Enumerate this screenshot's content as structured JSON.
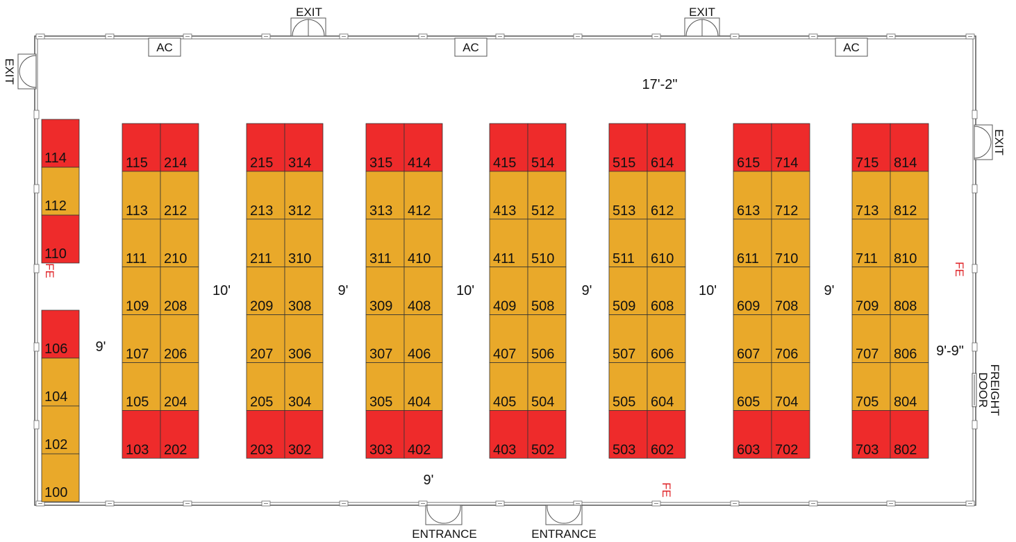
{
  "colors": {
    "premium": "#ee2b2b",
    "standard": "#e9a92a",
    "booth_border": "#333333",
    "wall": "#555555",
    "fire_extinguisher": "#e0282c"
  },
  "icons": [
    "column-icon",
    "door-icon",
    "fire-extinguisher-label"
  ],
  "signs": {
    "exit_top_1": "EXIT",
    "exit_top_2": "EXIT",
    "exit_left": "EXIT",
    "exit_right": "EXIT",
    "ac_1": "AC",
    "ac_2": "AC",
    "ac_3": "AC",
    "entrance_1": "ENTRANCE",
    "entrance_2": "ENTRANCE",
    "freight_line1": "FREIGHT",
    "freight_line2": "DOOR",
    "fe": "FE"
  },
  "dimensions": {
    "top": "17'-2\"",
    "bottom": "9'",
    "left": "9'",
    "right": "9'-9\"",
    "aisles": [
      "10'",
      "9'",
      "10'",
      "9'",
      "10'",
      "9'"
    ]
  },
  "left_column": [
    {
      "number": "114",
      "type": "premium"
    },
    {
      "number": "112",
      "type": "standard"
    },
    {
      "number": "110",
      "type": "premium"
    },
    {
      "number": "106",
      "type": "premium"
    },
    {
      "number": "104",
      "type": "standard"
    },
    {
      "number": "102",
      "type": "standard"
    },
    {
      "number": "100",
      "type": "standard"
    }
  ],
  "islands": [
    {
      "rows": [
        [
          "115",
          "214"
        ],
        [
          "113",
          "212"
        ],
        [
          "111",
          "210"
        ],
        [
          "109",
          "208"
        ],
        [
          "107",
          "206"
        ],
        [
          "105",
          "204"
        ],
        [
          "103",
          "202"
        ]
      ]
    },
    {
      "rows": [
        [
          "215",
          "314"
        ],
        [
          "213",
          "312"
        ],
        [
          "211",
          "310"
        ],
        [
          "209",
          "308"
        ],
        [
          "207",
          "306"
        ],
        [
          "205",
          "304"
        ],
        [
          "203",
          "302"
        ]
      ]
    },
    {
      "rows": [
        [
          "315",
          "414"
        ],
        [
          "313",
          "412"
        ],
        [
          "311",
          "410"
        ],
        [
          "309",
          "408"
        ],
        [
          "307",
          "406"
        ],
        [
          "305",
          "404"
        ],
        [
          "303",
          "402"
        ]
      ]
    },
    {
      "rows": [
        [
          "415",
          "514"
        ],
        [
          "413",
          "512"
        ],
        [
          "411",
          "510"
        ],
        [
          "409",
          "508"
        ],
        [
          "407",
          "506"
        ],
        [
          "405",
          "504"
        ],
        [
          "403",
          "502"
        ]
      ]
    },
    {
      "rows": [
        [
          "515",
          "614"
        ],
        [
          "513",
          "612"
        ],
        [
          "511",
          "610"
        ],
        [
          "509",
          "608"
        ],
        [
          "507",
          "606"
        ],
        [
          "505",
          "604"
        ],
        [
          "503",
          "602"
        ]
      ]
    },
    {
      "rows": [
        [
          "615",
          "714"
        ],
        [
          "613",
          "712"
        ],
        [
          "611",
          "710"
        ],
        [
          "609",
          "708"
        ],
        [
          "607",
          "706"
        ],
        [
          "605",
          "704"
        ],
        [
          "603",
          "702"
        ]
      ]
    },
    {
      "rows": [
        [
          "715",
          "814"
        ],
        [
          "713",
          "812"
        ],
        [
          "711",
          "810"
        ],
        [
          "709",
          "808"
        ],
        [
          "707",
          "806"
        ],
        [
          "705",
          "804"
        ],
        [
          "703",
          "802"
        ]
      ]
    }
  ],
  "island_row_types": [
    "premium",
    "standard",
    "standard",
    "standard",
    "standard",
    "standard",
    "premium"
  ]
}
